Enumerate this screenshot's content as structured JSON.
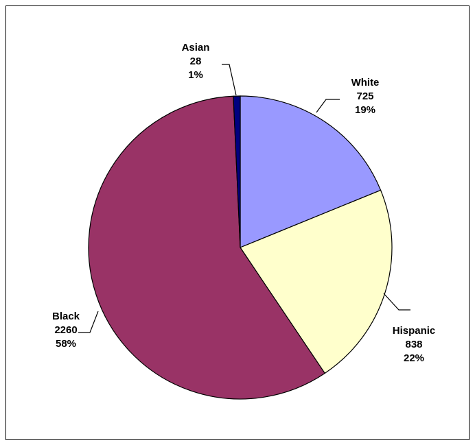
{
  "chart_data": {
    "type": "pie",
    "title": "",
    "start_angle_deg": 90,
    "direction": "clockwise",
    "slices": [
      {
        "name": "White",
        "value": 725,
        "percent_label": "19%",
        "color": "#9999ff"
      },
      {
        "name": "Hispanic",
        "value": 838,
        "percent_label": "22%",
        "color": "#ffffcc"
      },
      {
        "name": "Black",
        "value": 2260,
        "percent_label": "58%",
        "color": "#993366"
      },
      {
        "name": "Asian",
        "value": 28,
        "percent_label": "1%",
        "color": "#000080"
      }
    ],
    "data_labels": "name, value and percent with leader lines",
    "legend": "none"
  }
}
